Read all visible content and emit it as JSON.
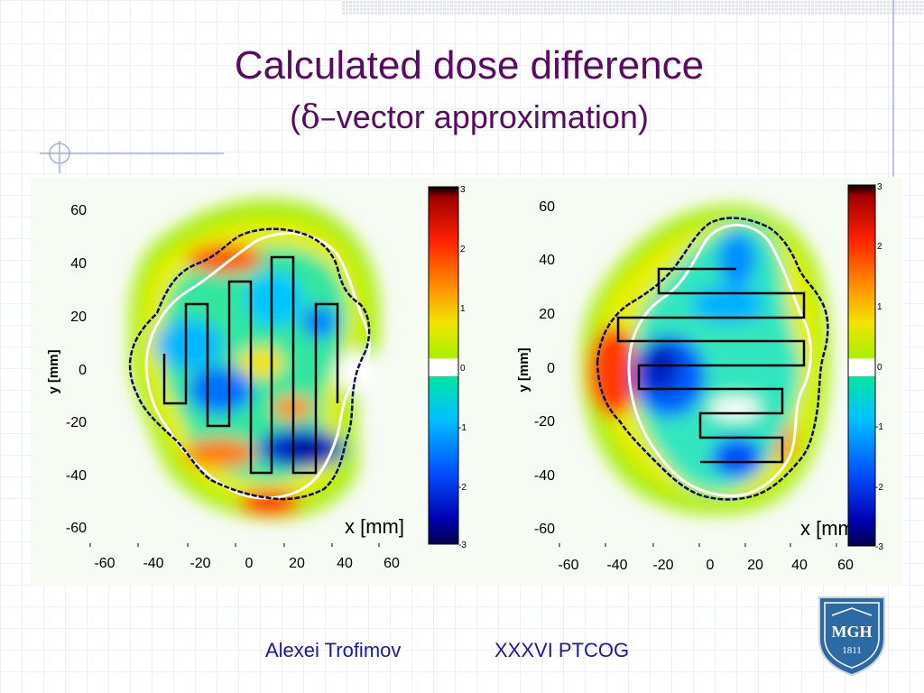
{
  "slide": {
    "title": "Calculated dose difference",
    "subtitle_open": "(",
    "subtitle_symbol": "δ–",
    "subtitle_rest": "vector approximation)"
  },
  "colorbar": {
    "ticks": [
      "3",
      "2",
      "1",
      "0",
      "-1",
      "-2",
      "-3"
    ],
    "colors": [
      "#000000",
      "#b00000",
      "#ff2000",
      "#ff8c00",
      "#f0e000",
      "#a8f000",
      "#ffffff",
      "#00e8a0",
      "#00b8ff",
      "#0050ff",
      "#0000a0",
      "#000050"
    ]
  },
  "plots": [
    {
      "id": "left",
      "y_ticks": [
        "60",
        "40",
        "20",
        "0",
        "-20",
        "-40",
        "-60"
      ],
      "x_ticks": [
        "-60",
        "-40",
        "-20",
        "0",
        "20",
        "40",
        "60"
      ],
      "ylabel": "y [mm]",
      "xlabel": "x [mm]"
    },
    {
      "id": "right",
      "y_ticks": [
        "60",
        "40",
        "20",
        "0",
        "-20",
        "-40",
        "-60"
      ],
      "x_ticks": [
        "-60",
        "-40",
        "-20",
        "0",
        "20",
        "40",
        "60"
      ],
      "ylabel": "y [mm]",
      "xlabel": "x [mm]"
    }
  ],
  "footer": {
    "author": "Alexei Trofimov",
    "conference": "XXXVI PTCOG"
  },
  "logo": {
    "text": "MGH",
    "year": "1811"
  }
}
